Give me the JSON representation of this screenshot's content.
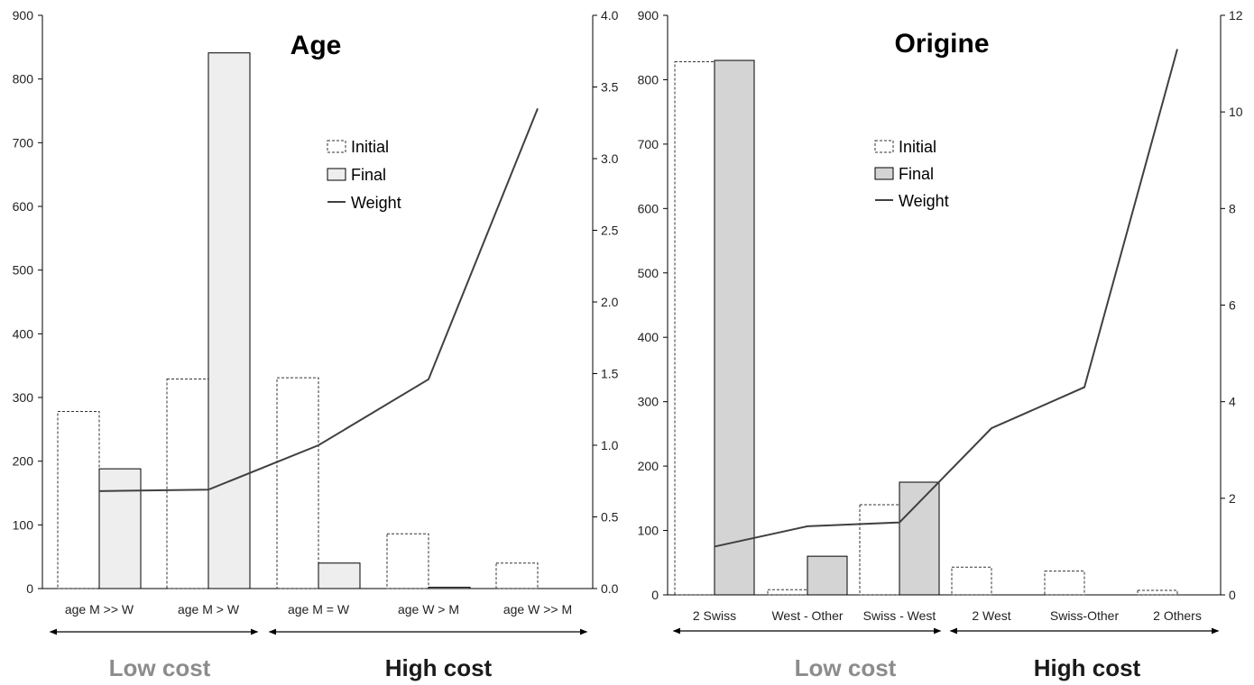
{
  "chart_data": [
    {
      "type": "bar",
      "title": "Age",
      "categories": [
        "age M >> W",
        "age M > W",
        "age M = W",
        "age W > M",
        "age W >> M"
      ],
      "series": [
        {
          "name": "Initial",
          "kind": "bar",
          "style": "dashed-outline",
          "axis": "left",
          "values": [
            278,
            329,
            331,
            86,
            40
          ]
        },
        {
          "name": "Final",
          "kind": "bar",
          "style": "filled",
          "color": "#eeeeee",
          "axis": "left",
          "values": [
            188,
            841,
            40,
            2,
            0
          ]
        },
        {
          "name": "Weight",
          "kind": "line",
          "color": "#404040",
          "axis": "right",
          "values": [
            0.68,
            0.69,
            1.0,
            1.46,
            3.35
          ]
        }
      ],
      "y_left": {
        "min": 0,
        "max": 900,
        "ticks": [
          "0",
          "100",
          "200",
          "300",
          "400",
          "500",
          "600",
          "700",
          "800",
          "900"
        ]
      },
      "y_right": {
        "min": 0,
        "max": 4.0,
        "ticks": [
          "0.0",
          "0.5",
          "1.0",
          "1.5",
          "2.0",
          "2.5",
          "3.0",
          "3.5",
          "4.0"
        ]
      },
      "legend": {
        "position": "upper-center",
        "items": [
          "Initial",
          "Final",
          "Weight"
        ]
      },
      "groups": [
        {
          "label": "Low cost",
          "from": 0,
          "to": 1
        },
        {
          "label": "High cost",
          "from": 2,
          "to": 4
        }
      ],
      "grid": false
    },
    {
      "type": "bar",
      "title": "Origine",
      "categories": [
        "2 Swiss",
        "West - Other",
        "Swiss - West",
        "2 West",
        "Swiss-Other",
        "2 Others"
      ],
      "series": [
        {
          "name": "Initial",
          "kind": "bar",
          "style": "dashed-outline",
          "axis": "left",
          "values": [
            828,
            8,
            140,
            43,
            37,
            7
          ]
        },
        {
          "name": "Final",
          "kind": "bar",
          "style": "filled",
          "color": "#d4d4d4",
          "axis": "left",
          "values": [
            830,
            60,
            175,
            0,
            0,
            0
          ]
        },
        {
          "name": "Weight",
          "kind": "line",
          "color": "#404040",
          "axis": "right",
          "values": [
            1.0,
            1.42,
            1.5,
            3.45,
            4.3,
            11.3
          ]
        }
      ],
      "y_left": {
        "min": 0,
        "max": 900,
        "ticks": [
          "0",
          "100",
          "200",
          "300",
          "400",
          "500",
          "600",
          "700",
          "800",
          "900"
        ]
      },
      "y_right": {
        "min": 0,
        "max": 12,
        "ticks": [
          "0",
          "2",
          "4",
          "6",
          "8",
          "10",
          "12"
        ]
      },
      "legend": {
        "position": "upper-center",
        "items": [
          "Initial",
          "Final",
          "Weight"
        ]
      },
      "groups": [
        {
          "label": "Low cost",
          "from": 0,
          "to": 2
        },
        {
          "label": "High cost",
          "from": 3,
          "to": 5
        }
      ],
      "grid": false
    }
  ]
}
